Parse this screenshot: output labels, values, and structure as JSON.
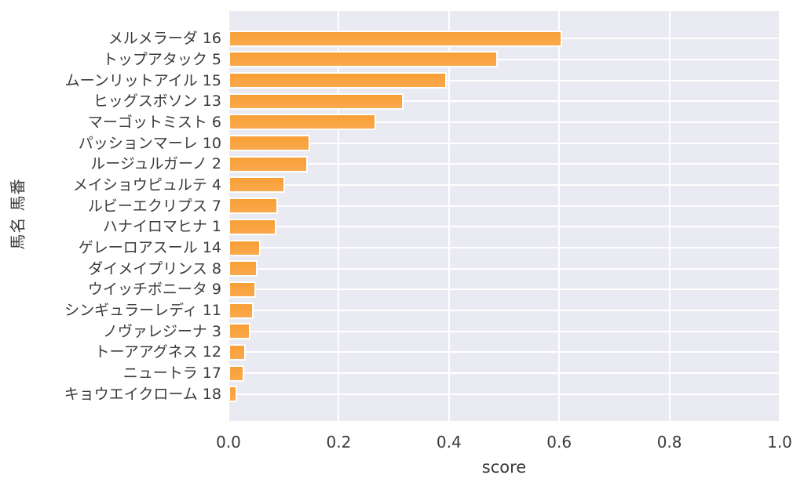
{
  "chart_data": {
    "type": "bar",
    "orientation": "horizontal",
    "title": "",
    "xlabel": "score",
    "ylabel": "馬名 馬番",
    "xlim": [
      0.0,
      1.0
    ],
    "xticks": [
      "0.0",
      "0.2",
      "0.4",
      "0.6",
      "0.8",
      "1.0"
    ],
    "grid": true,
    "legend": false,
    "categories": [
      "メルメラーダ 16",
      "トップアタック 5",
      "ムーンリットアイル 15",
      "ヒッグスボソン 13",
      "マーゴットミスト 6",
      "パッションマーレ 10",
      "ルージュルガーノ 2",
      "メイショウピュルテ 4",
      "ルビーエクリプス 7",
      "ハナイロマヒナ 1",
      "ゲレーロアスール 14",
      "ダイメイプリンス 8",
      "ウイッチボニータ 9",
      "シンギュラーレディ 11",
      "ノヴァレジーナ 3",
      "トーアアグネス 12",
      "ニュートラ 17",
      "キョウエイクローム 18"
    ],
    "values": [
      0.605,
      0.489,
      0.396,
      0.318,
      0.268,
      0.148,
      0.144,
      0.102,
      0.09,
      0.087,
      0.059,
      0.053,
      0.05,
      0.046,
      0.04,
      0.032,
      0.029,
      0.015
    ]
  },
  "colors": {
    "bar": "#F9A23C",
    "bar_top": "#F89F35",
    "bar_bottom": "#FAA94E",
    "bar_edge": "#FFFFFF",
    "plot_bg": "#EAEAF2",
    "grid": "#FFFFFF",
    "text": "#3A3A3A"
  }
}
